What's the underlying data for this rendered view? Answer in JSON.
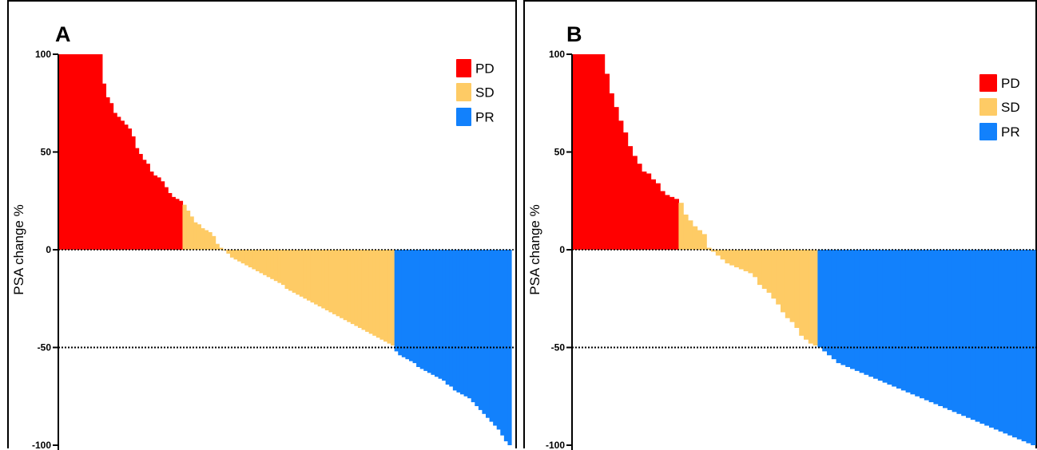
{
  "colors": {
    "PD": "#ff0000",
    "SD": "#fecb65",
    "PR": "#1281fc",
    "axis": "#000000"
  },
  "chart_data": [
    {
      "type": "bar",
      "panel_label": "A",
      "ylabel": "PSA change %",
      "ylim": [
        -100,
        100
      ],
      "yticks": [
        100,
        50,
        0,
        -50,
        -100
      ],
      "reference_lines": [
        0,
        -50
      ],
      "legend": {
        "placement": "top-right",
        "entries": [
          "PD",
          "SD",
          "PR"
        ]
      },
      "series": [
        {
          "name": "PD",
          "values": [
            100,
            100,
            100,
            100,
            100,
            100,
            100,
            100,
            100,
            100,
            100,
            100,
            85,
            78,
            75,
            70,
            68,
            66,
            64,
            62,
            58,
            52,
            49,
            46,
            44,
            40,
            38,
            37,
            35,
            32,
            29,
            27,
            26,
            25
          ]
        },
        {
          "name": "SD",
          "values": [
            23,
            20,
            17,
            14,
            13,
            11,
            10,
            9,
            7,
            3,
            1,
            0,
            -2,
            -4,
            -5,
            -6,
            -7,
            -8,
            -9,
            -10,
            -11,
            -12,
            -13,
            -14,
            -15,
            -16,
            -17,
            -18,
            -20,
            -21,
            -22,
            -23,
            -24,
            -25,
            -26,
            -27,
            -28,
            -29,
            -30,
            -31,
            -32,
            -33,
            -34,
            -35,
            -36,
            -37,
            -38,
            -39,
            -40,
            -41,
            -42,
            -43,
            -44,
            -45,
            -46,
            -47,
            -48,
            -49
          ]
        },
        {
          "name": "PR",
          "values": [
            -52,
            -54,
            -55,
            -56,
            -57,
            -58,
            -60,
            -61,
            -62,
            -63,
            -64,
            -65,
            -66,
            -67,
            -69,
            -70,
            -72,
            -73,
            -74,
            -75,
            -76,
            -78,
            -80,
            -82,
            -84,
            -86,
            -88,
            -90,
            -92,
            -95,
            -98,
            -100
          ]
        }
      ]
    },
    {
      "type": "bar",
      "panel_label": "B",
      "ylabel": "PSA change %",
      "ylim": [
        -100,
        100
      ],
      "yticks": [
        100,
        50,
        0,
        -50,
        -100
      ],
      "reference_lines": [
        0,
        -50
      ],
      "legend": {
        "placement": "top-right",
        "entries": [
          "PD",
          "SD",
          "PR"
        ]
      },
      "series": [
        {
          "name": "PD",
          "values": [
            100,
            100,
            100,
            100,
            100,
            100,
            100,
            90,
            80,
            73,
            66,
            60,
            53,
            48,
            44,
            40,
            39,
            36,
            34,
            30,
            28,
            27,
            26
          ]
        },
        {
          "name": "SD",
          "values": [
            24,
            18,
            15,
            12,
            10,
            8,
            1,
            -1,
            -3,
            -5,
            -7,
            -8,
            -9,
            -10,
            -11,
            -12,
            -14,
            -18,
            -20,
            -22,
            -25,
            -28,
            -32,
            -35,
            -37,
            -40,
            -44,
            -46,
            -48,
            -49
          ]
        },
        {
          "name": "PR",
          "values": [
            -50,
            -52,
            -54,
            -56,
            -58,
            -59,
            -60,
            -61,
            -62,
            -63,
            -64,
            -65,
            -66,
            -67,
            -68,
            -69,
            -70,
            -71,
            -72,
            -73,
            -74,
            -75,
            -76,
            -77,
            -78,
            -79,
            -80,
            -81,
            -82,
            -83,
            -84,
            -85,
            -86,
            -87,
            -88,
            -89,
            -90,
            -91,
            -92,
            -93,
            -94,
            -95,
            -96,
            -97,
            -98,
            -99,
            -100
          ]
        }
      ]
    }
  ]
}
